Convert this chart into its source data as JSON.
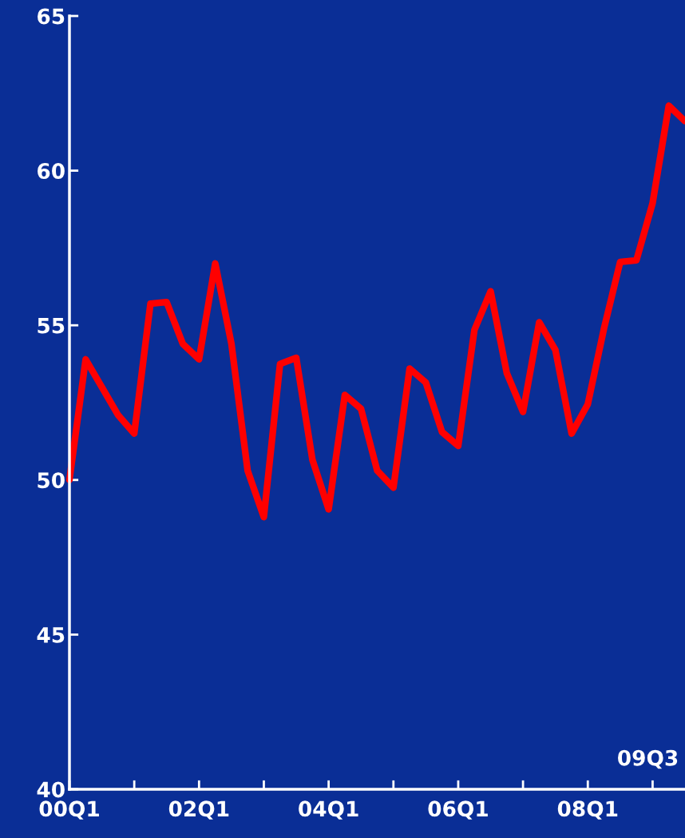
{
  "chart_data": {
    "type": "line",
    "categories": [
      "00Q1",
      null,
      null,
      null,
      null,
      null,
      null,
      null,
      "02Q1",
      null,
      null,
      null,
      null,
      null,
      null,
      null,
      "04Q1",
      null,
      null,
      null,
      null,
      null,
      null,
      null,
      "06Q1",
      null,
      null,
      null,
      null,
      null,
      null,
      null,
      "08Q1",
      null,
      null,
      null,
      null,
      null,
      null
    ],
    "series": [
      {
        "color": "#ff0000",
        "values": [
          50.0,
          53.9,
          53.0,
          52.1,
          51.5,
          55.7,
          55.75,
          54.4,
          53.9,
          57.0,
          54.4,
          50.3,
          48.8,
          53.75,
          53.95,
          50.65,
          49.05,
          52.75,
          52.3,
          50.3,
          49.75,
          53.6,
          53.15,
          51.55,
          51.1,
          54.85,
          56.1,
          53.45,
          52.2,
          55.1,
          54.2,
          51.5,
          52.45,
          54.9,
          57.05,
          57.1,
          58.95,
          62.1,
          61.6
        ]
      }
    ],
    "ylim": [
      40,
      65
    ],
    "yticks": [
      40,
      45,
      50,
      55,
      60,
      65
    ],
    "annotations": [
      "09Q3"
    ],
    "marker": "none",
    "line_style": "solid"
  }
}
